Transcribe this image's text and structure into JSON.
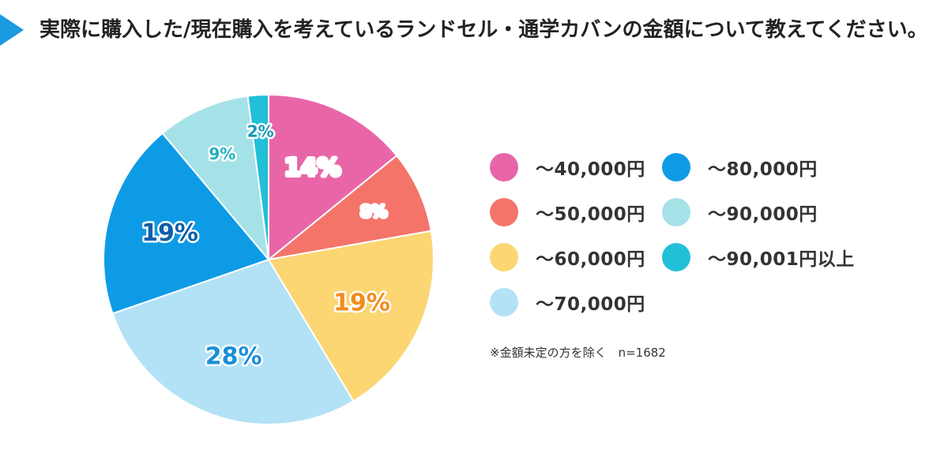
{
  "title": "実際に購入した/現在購入を考えているランドセル・通学カバンの金額について教えてください。",
  "accent_color": "#1a9ae0",
  "chart_data": {
    "type": "pie",
    "unit": "%",
    "slices": [
      {
        "label": "～40,000円",
        "value": 14,
        "color": "#e866a8",
        "text_color": "#ffffff"
      },
      {
        "label": "～50,000円",
        "value": 8,
        "color": "#f4746a",
        "text_color": "#ffffff"
      },
      {
        "label": "～60,000円",
        "value": 19,
        "color": "#fbd673",
        "text_color": "#f28c1d"
      },
      {
        "label": "～70,000円",
        "value": 28,
        "color": "#b3e2f6",
        "text_color": "#1a8fd6"
      },
      {
        "label": "～80,000円",
        "value": 19,
        "color": "#0e9be6",
        "text_color": "#0e5fa8"
      },
      {
        "label": "～90,000円",
        "value": 9,
        "color": "#a5e2e8",
        "text_color": "#22b0c2"
      },
      {
        "label": "～90,001円以上",
        "value": 2,
        "color": "#22bfd8",
        "text_color": "#1597b0"
      }
    ],
    "note": "※金額未定の方を除く　n=1682"
  }
}
